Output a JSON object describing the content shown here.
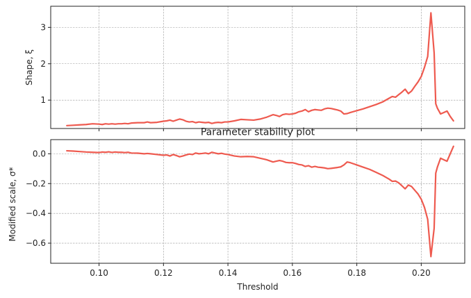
{
  "chart_data": [
    {
      "type": "line",
      "panel": "top",
      "ylabel": "Shape, ξ",
      "xlim": [
        0.085,
        0.2135
      ],
      "ylim": [
        0.22,
        3.58
      ],
      "x_ticks": [
        0.1,
        0.12,
        0.14,
        0.16,
        0.18,
        0.2
      ],
      "y_ticks": [
        1,
        2,
        3
      ],
      "y_tick_labels": [
        "1",
        "2",
        "3"
      ],
      "grid": true,
      "color": "#ee5a4f",
      "series": [
        {
          "x": [
            0.09,
            0.092,
            0.094,
            0.096,
            0.098,
            0.1,
            0.101,
            0.102,
            0.103,
            0.104,
            0.105,
            0.106,
            0.107,
            0.108,
            0.109,
            0.11,
            0.112,
            0.114,
            0.115,
            0.116,
            0.118,
            0.12,
            0.121,
            0.122,
            0.123,
            0.124,
            0.125,
            0.126,
            0.127,
            0.128,
            0.129,
            0.13,
            0.131,
            0.132,
            0.133,
            0.134,
            0.135,
            0.136,
            0.137,
            0.138,
            0.139,
            0.14,
            0.142,
            0.144,
            0.146,
            0.148,
            0.15,
            0.152,
            0.154,
            0.155,
            0.156,
            0.157,
            0.158,
            0.159,
            0.16,
            0.161,
            0.162,
            0.163,
            0.164,
            0.165,
            0.166,
            0.167,
            0.168,
            0.169,
            0.17,
            0.171,
            0.172,
            0.173,
            0.174,
            0.175,
            0.176,
            0.177,
            0.178,
            0.18,
            0.182,
            0.184,
            0.186,
            0.188,
            0.19,
            0.191,
            0.192,
            0.193,
            0.194,
            0.195,
            0.196,
            0.197,
            0.198,
            0.199,
            0.2,
            0.201,
            0.202,
            0.203,
            0.204,
            0.2045,
            0.205,
            0.206,
            0.207,
            0.208,
            0.209,
            0.21
          ],
          "y": [
            0.3,
            0.31,
            0.32,
            0.33,
            0.35,
            0.34,
            0.33,
            0.35,
            0.34,
            0.35,
            0.34,
            0.35,
            0.35,
            0.36,
            0.35,
            0.37,
            0.38,
            0.38,
            0.4,
            0.38,
            0.39,
            0.42,
            0.43,
            0.45,
            0.42,
            0.45,
            0.48,
            0.46,
            0.42,
            0.4,
            0.41,
            0.38,
            0.4,
            0.39,
            0.38,
            0.39,
            0.36,
            0.38,
            0.39,
            0.38,
            0.4,
            0.4,
            0.43,
            0.47,
            0.46,
            0.45,
            0.48,
            0.53,
            0.6,
            0.58,
            0.55,
            0.6,
            0.62,
            0.61,
            0.62,
            0.64,
            0.68,
            0.7,
            0.74,
            0.68,
            0.72,
            0.74,
            0.73,
            0.72,
            0.76,
            0.78,
            0.77,
            0.75,
            0.73,
            0.7,
            0.62,
            0.63,
            0.66,
            0.71,
            0.76,
            0.82,
            0.88,
            0.95,
            1.05,
            1.1,
            1.08,
            1.15,
            1.22,
            1.3,
            1.18,
            1.25,
            1.38,
            1.5,
            1.65,
            1.9,
            2.2,
            3.4,
            2.3,
            0.9,
            0.78,
            0.62,
            0.66,
            0.7,
            0.55,
            0.43
          ]
        }
      ]
    },
    {
      "type": "line",
      "panel": "bottom",
      "title": "Parameter stability plot",
      "xlabel": "Threshold",
      "ylabel": "Modified scale, σ*",
      "xlim": [
        0.085,
        0.2135
      ],
      "ylim": [
        -0.735,
        0.095
      ],
      "x_ticks": [
        0.1,
        0.12,
        0.14,
        0.16,
        0.18,
        0.2
      ],
      "x_tick_labels": [
        "0.10",
        "0.12",
        "0.14",
        "0.16",
        "0.18",
        "0.20"
      ],
      "y_ticks": [
        0.0,
        -0.2,
        -0.4,
        -0.6
      ],
      "y_tick_labels": [
        "0.0",
        "−0.2",
        "−0.4",
        "−0.6"
      ],
      "grid": true,
      "color": "#ee5a4f",
      "series": [
        {
          "x": [
            0.09,
            0.092,
            0.094,
            0.096,
            0.098,
            0.1,
            0.101,
            0.102,
            0.103,
            0.104,
            0.105,
            0.106,
            0.107,
            0.108,
            0.109,
            0.11,
            0.112,
            0.114,
            0.115,
            0.116,
            0.118,
            0.12,
            0.121,
            0.122,
            0.123,
            0.124,
            0.125,
            0.126,
            0.127,
            0.128,
            0.129,
            0.13,
            0.131,
            0.132,
            0.133,
            0.134,
            0.135,
            0.136,
            0.137,
            0.138,
            0.139,
            0.14,
            0.142,
            0.144,
            0.146,
            0.148,
            0.15,
            0.152,
            0.154,
            0.155,
            0.156,
            0.157,
            0.158,
            0.159,
            0.16,
            0.161,
            0.162,
            0.163,
            0.164,
            0.165,
            0.166,
            0.167,
            0.168,
            0.169,
            0.17,
            0.171,
            0.172,
            0.173,
            0.174,
            0.175,
            0.176,
            0.177,
            0.178,
            0.18,
            0.182,
            0.184,
            0.186,
            0.188,
            0.19,
            0.191,
            0.192,
            0.193,
            0.194,
            0.195,
            0.196,
            0.197,
            0.198,
            0.199,
            0.2,
            0.201,
            0.202,
            0.203,
            0.204,
            0.2045,
            0.205,
            0.206,
            0.207,
            0.208,
            0.209,
            0.21
          ],
          "y": [
            0.02,
            0.018,
            0.015,
            0.012,
            0.01,
            0.008,
            0.012,
            0.01,
            0.013,
            0.009,
            0.012,
            0.01,
            0.01,
            0.008,
            0.01,
            0.005,
            0.004,
            0.0,
            0.002,
            0.0,
            -0.005,
            -0.01,
            -0.008,
            -0.015,
            -0.005,
            -0.012,
            -0.02,
            -0.015,
            -0.008,
            -0.002,
            -0.005,
            0.005,
            0.0,
            0.002,
            0.005,
            0.0,
            0.01,
            0.005,
            0.0,
            0.003,
            -0.002,
            -0.005,
            -0.015,
            -0.02,
            -0.018,
            -0.02,
            -0.03,
            -0.04,
            -0.055,
            -0.05,
            -0.045,
            -0.05,
            -0.058,
            -0.06,
            -0.06,
            -0.065,
            -0.072,
            -0.075,
            -0.085,
            -0.08,
            -0.09,
            -0.085,
            -0.09,
            -0.092,
            -0.095,
            -0.1,
            -0.098,
            -0.095,
            -0.092,
            -0.088,
            -0.075,
            -0.055,
            -0.06,
            -0.075,
            -0.09,
            -0.105,
            -0.125,
            -0.145,
            -0.17,
            -0.185,
            -0.183,
            -0.195,
            -0.215,
            -0.235,
            -0.21,
            -0.22,
            -0.245,
            -0.27,
            -0.305,
            -0.36,
            -0.44,
            -0.69,
            -0.5,
            -0.13,
            -0.09,
            -0.03,
            -0.04,
            -0.05,
            0.0,
            0.05
          ]
        }
      ]
    }
  ]
}
